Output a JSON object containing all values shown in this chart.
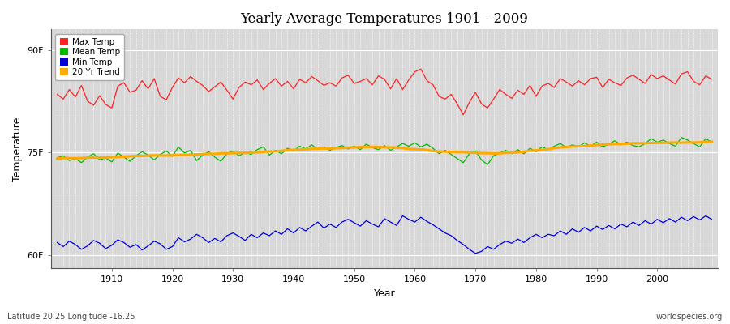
{
  "title": "Yearly Average Temperatures 1901 - 2009",
  "xlabel": "Year",
  "ylabel": "Temperature",
  "lat_lon_label": "Latitude 20.25 Longitude -16.25",
  "credit_label": "worldspecies.org",
  "year_start": 1901,
  "year_end": 2009,
  "yticks_labels": [
    "60F",
    "75F",
    "90F"
  ],
  "yticks_values": [
    60,
    75,
    90
  ],
  "ylim": [
    58,
    93
  ],
  "xlim": [
    1900,
    2010
  ],
  "fig_bg_color": "#ffffff",
  "plot_bg_color": "#d8d8d8",
  "grid_color": "#ffffff",
  "line_colors": {
    "max": "#ff2222",
    "mean": "#00bb00",
    "min": "#0000dd",
    "trend": "#ffaa00"
  },
  "legend_entries": [
    "Max Temp",
    "Mean Temp",
    "Min Temp",
    "20 Yr Trend"
  ],
  "legend_colors": [
    "#ff2222",
    "#00bb00",
    "#0000dd",
    "#ffaa00"
  ],
  "max_temp_values": [
    83.5,
    82.8,
    84.2,
    83.1,
    84.8,
    82.5,
    81.9,
    83.3,
    82.0,
    81.5,
    84.7,
    85.2,
    83.8,
    84.1,
    85.5,
    84.3,
    85.8,
    83.2,
    82.7,
    84.5,
    85.9,
    85.2,
    86.1,
    85.4,
    84.8,
    83.9,
    84.6,
    85.3,
    84.1,
    82.8,
    84.5,
    85.3,
    84.9,
    85.6,
    84.2,
    85.1,
    85.8,
    84.7,
    85.4,
    84.3,
    85.7,
    85.2,
    86.1,
    85.5,
    84.8,
    85.2,
    84.7,
    85.9,
    86.3,
    85.1,
    85.4,
    85.8,
    84.9,
    86.2,
    85.7,
    84.3,
    85.8,
    84.2,
    85.6,
    86.8,
    87.2,
    85.5,
    84.9,
    83.2,
    82.8,
    83.5,
    82.1,
    80.5,
    82.3,
    83.8,
    82.1,
    81.5,
    82.8,
    84.2,
    83.5,
    82.9,
    84.1,
    83.5,
    84.8,
    83.2,
    84.7,
    85.1,
    84.5,
    85.8,
    85.3,
    84.7,
    85.5,
    84.9,
    85.8,
    86.0,
    84.5,
    85.7,
    85.2,
    84.8,
    85.9,
    86.3,
    85.7,
    85.1,
    86.4,
    85.8,
    86.2,
    85.6,
    85.0,
    86.5,
    86.8,
    85.4,
    84.9,
    86.2,
    85.7
  ],
  "mean_temp_values": [
    74.2,
    74.5,
    73.8,
    74.1,
    73.5,
    74.3,
    74.8,
    73.9,
    74.2,
    73.6,
    74.9,
    74.3,
    73.7,
    74.5,
    75.1,
    74.6,
    73.9,
    74.7,
    75.2,
    74.4,
    75.8,
    74.9,
    75.3,
    73.8,
    74.6,
    75.1,
    74.3,
    73.7,
    74.8,
    75.2,
    74.5,
    75.0,
    74.7,
    75.4,
    75.8,
    74.6,
    75.3,
    74.8,
    75.6,
    75.2,
    75.9,
    75.5,
    76.1,
    75.4,
    75.8,
    75.3,
    75.7,
    76.0,
    75.5,
    75.9,
    75.4,
    76.2,
    75.7,
    75.4,
    76.0,
    75.3,
    75.8,
    76.3,
    75.9,
    76.4,
    75.8,
    76.2,
    75.6,
    74.8,
    75.3,
    74.7,
    74.1,
    73.5,
    74.8,
    75.2,
    73.9,
    73.2,
    74.5,
    74.9,
    75.3,
    74.8,
    75.4,
    74.8,
    75.6,
    75.1,
    75.8,
    75.4,
    75.9,
    76.3,
    75.7,
    76.1,
    75.8,
    76.4,
    75.9,
    76.5,
    75.8,
    76.2,
    76.7,
    76.1,
    76.5,
    76.0,
    75.8,
    76.3,
    77.0,
    76.5,
    76.8,
    76.3,
    75.9,
    77.2,
    76.8,
    76.3,
    75.8,
    77.0,
    76.5
  ],
  "min_temp_values": [
    61.8,
    61.2,
    62.0,
    61.5,
    60.8,
    61.3,
    62.1,
    61.7,
    60.9,
    61.4,
    62.2,
    61.8,
    61.1,
    61.5,
    60.7,
    61.3,
    62.0,
    61.6,
    60.8,
    61.2,
    62.5,
    61.9,
    62.3,
    63.0,
    62.5,
    61.8,
    62.4,
    61.9,
    62.8,
    63.2,
    62.7,
    62.1,
    63.0,
    62.5,
    63.2,
    62.8,
    63.5,
    63.0,
    63.8,
    63.2,
    64.0,
    63.5,
    64.2,
    64.8,
    63.9,
    64.5,
    64.0,
    64.8,
    65.2,
    64.7,
    64.2,
    65.0,
    64.5,
    64.1,
    65.3,
    64.8,
    64.3,
    65.7,
    65.2,
    64.8,
    65.5,
    64.9,
    64.4,
    63.8,
    63.2,
    62.8,
    62.1,
    61.5,
    60.8,
    60.2,
    60.5,
    61.2,
    60.8,
    61.5,
    62.0,
    61.7,
    62.3,
    61.8,
    62.5,
    63.0,
    62.5,
    63.0,
    62.8,
    63.5,
    63.0,
    63.8,
    63.3,
    64.0,
    63.5,
    64.2,
    63.7,
    64.3,
    63.8,
    64.5,
    64.1,
    64.8,
    64.3,
    65.0,
    64.5,
    65.2,
    64.7,
    65.3,
    64.8,
    65.5,
    65.0,
    65.6,
    65.1,
    65.7,
    65.2
  ]
}
